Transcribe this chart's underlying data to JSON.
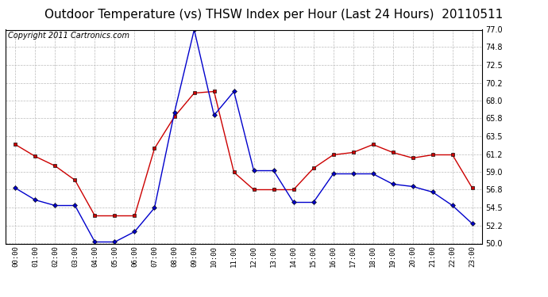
{
  "title": "Outdoor Temperature (vs) THSW Index per Hour (Last 24 Hours)  20110511",
  "copyright": "Copyright 2011 Cartronics.com",
  "hours": [
    "00:00",
    "01:00",
    "02:00",
    "03:00",
    "04:00",
    "05:00",
    "06:00",
    "07:00",
    "08:00",
    "09:00",
    "10:00",
    "11:00",
    "12:00",
    "13:00",
    "14:00",
    "15:00",
    "16:00",
    "17:00",
    "18:00",
    "19:00",
    "20:00",
    "21:00",
    "22:00",
    "23:00"
  ],
  "temp_red": [
    62.5,
    61.0,
    59.8,
    58.0,
    53.5,
    53.5,
    53.5,
    62.0,
    66.0,
    69.0,
    69.2,
    59.0,
    56.8,
    56.8,
    56.8,
    59.5,
    61.2,
    61.5,
    62.5,
    61.5,
    60.8,
    61.2,
    61.2,
    57.0
  ],
  "thsw_blue": [
    57.0,
    55.5,
    54.8,
    54.8,
    50.2,
    50.2,
    51.5,
    54.5,
    66.5,
    77.0,
    66.2,
    69.2,
    59.2,
    59.2,
    55.2,
    55.2,
    58.8,
    58.8,
    58.8,
    57.5,
    57.2,
    56.5,
    54.8,
    52.5
  ],
  "ylim": [
    50.0,
    77.0
  ],
  "yticks": [
    50.0,
    52.2,
    54.5,
    56.8,
    59.0,
    61.2,
    63.5,
    65.8,
    68.0,
    70.2,
    72.5,
    74.8,
    77.0
  ],
  "red_color": "#cc0000",
  "blue_color": "#0000cc",
  "bg_color": "#ffffff",
  "grid_color": "#bbbbbb",
  "title_fontsize": 11,
  "copyright_fontsize": 7
}
